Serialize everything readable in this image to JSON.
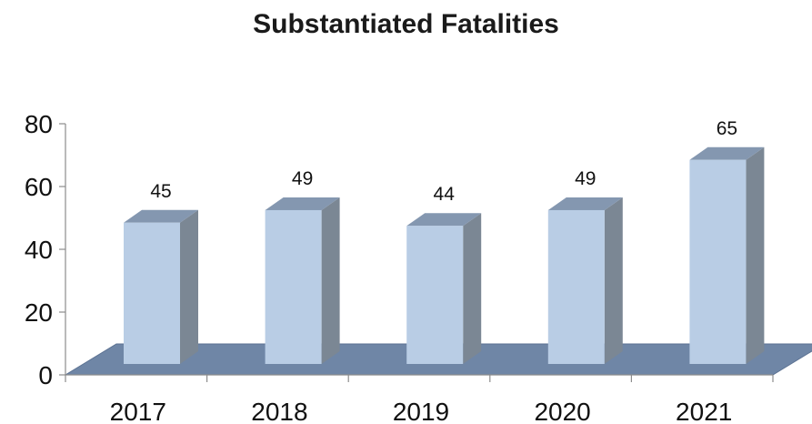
{
  "chart_data": {
    "type": "bar",
    "title": "Substantiated Fatalities",
    "categories": [
      "2017",
      "2018",
      "2019",
      "2020",
      "2021"
    ],
    "values": [
      45,
      49,
      44,
      49,
      65
    ],
    "ylim": [
      0,
      80
    ],
    "yticks": [
      "0",
      "20",
      "40",
      "60",
      "80"
    ],
    "xlabel": "",
    "ylabel": "",
    "grid": false,
    "legend": "none",
    "colors": {
      "bar_front": "#b9cde5",
      "bar_top": "#8497b0",
      "bar_side": "#7b8794",
      "floor": "#6f86a6",
      "floor_edge": "#5d7393"
    }
  }
}
